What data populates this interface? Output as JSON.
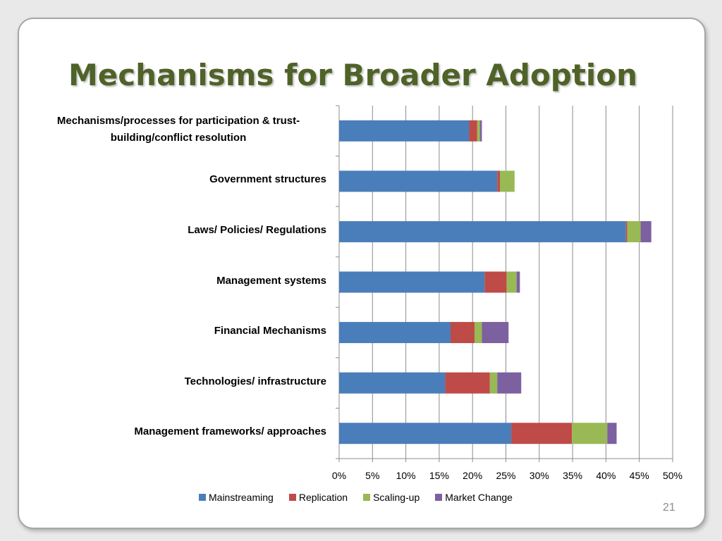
{
  "slide": {
    "title": "Mechanisms for Broader Adoption",
    "page_number": "21"
  },
  "chart_data": {
    "type": "bar",
    "orientation": "horizontal",
    "stacked": true,
    "categories": [
      "Mechanisms/processes for participation & trust-building/conflict resolution",
      "Government structures",
      "Laws/ Policies/ Regulations",
      "Management systems",
      "Financial Mechanisms",
      "Technologies/ infrastructure",
      "Management frameworks/ approaches"
    ],
    "category_display": [
      [
        "Mechanisms/processes for participation & trust-",
        "building/conflict resolution"
      ],
      [
        "Government structures"
      ],
      [
        "Laws/ Policies/ Regulations"
      ],
      [
        "Management systems"
      ],
      [
        "Financial Mechanisms"
      ],
      [
        "Technologies/ infrastructure"
      ],
      [
        "Management frameworks/ approaches"
      ]
    ],
    "series": [
      {
        "name": "Mainstreaming",
        "color": "#4a7ebb",
        "values": [
          19.5,
          23.7,
          43.0,
          21.8,
          16.7,
          15.9,
          25.8
        ]
      },
      {
        "name": "Replication",
        "color": "#be4b48",
        "values": [
          1.2,
          0.4,
          0.2,
          3.3,
          3.6,
          6.7,
          9.1
        ]
      },
      {
        "name": "Scaling-up",
        "color": "#98b954",
        "values": [
          0.4,
          2.2,
          2.0,
          1.5,
          1.1,
          1.1,
          5.3
        ]
      },
      {
        "name": "Market Change",
        "color": "#7d60a0",
        "values": [
          0.3,
          0.0,
          1.6,
          0.5,
          4.0,
          3.6,
          1.4
        ]
      }
    ],
    "xlim": [
      0,
      50
    ],
    "x_ticks": [
      "0%",
      "5%",
      "10%",
      "15%",
      "20%",
      "25%",
      "30%",
      "35%",
      "40%",
      "45%",
      "50%"
    ],
    "x_tick_values": [
      0,
      5,
      10,
      15,
      20,
      25,
      30,
      35,
      40,
      45,
      50
    ],
    "grid": "vertical",
    "legend_position": "bottom"
  }
}
